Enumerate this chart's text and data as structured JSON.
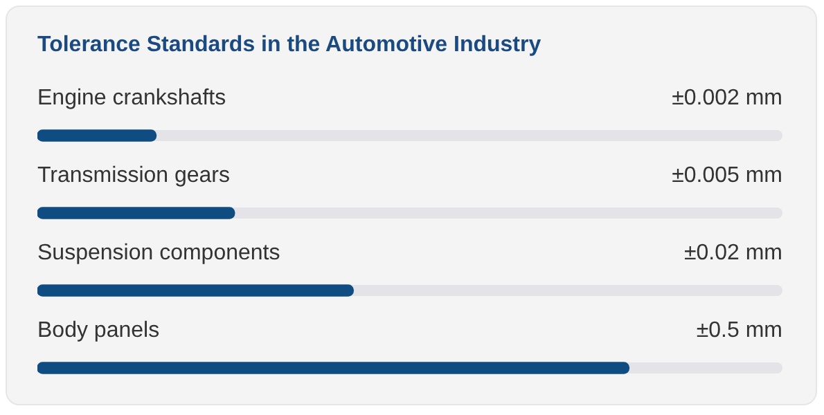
{
  "chart_data": {
    "type": "bar",
    "orientation": "horizontal",
    "log": "x",
    "xlim": [
      0.0005,
      3
    ],
    "title": "Tolerance Standards in the Automotive Industry",
    "categories": [
      "Engine crankshafts",
      "Transmission gears",
      "Suspension components",
      "Body panels"
    ],
    "values": [
      0.002,
      0.005,
      0.02,
      0.5
    ],
    "value_labels": [
      "±0.002 mm",
      "±0.005 mm",
      "±0.02 mm",
      "±0.5 mm"
    ],
    "color": "#0f4c81",
    "tick_labels": false
  }
}
